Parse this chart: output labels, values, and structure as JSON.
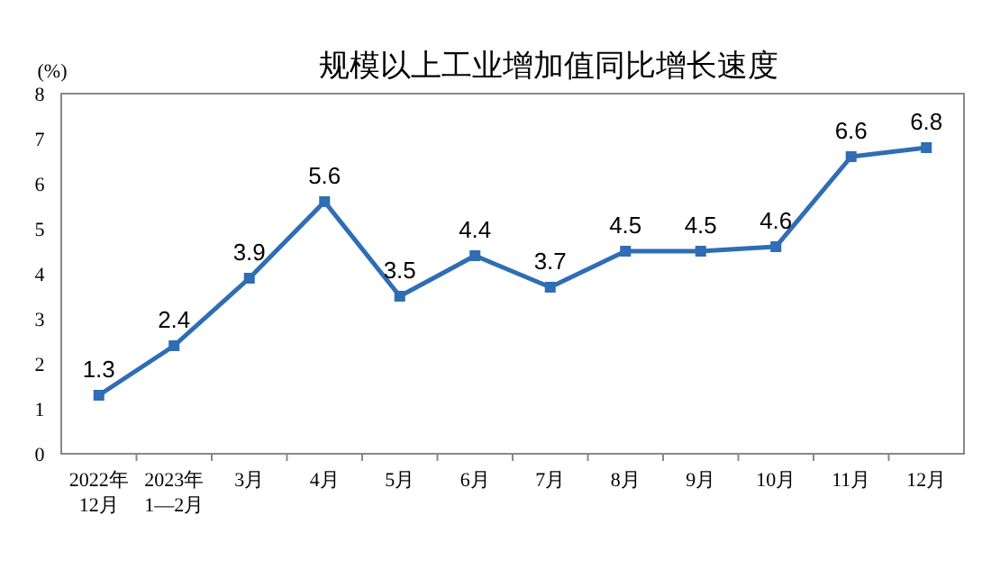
{
  "chart_data": {
    "type": "line",
    "title": "规模以上工业增加值同比增长速度",
    "ylabel": "(%)",
    "categories": [
      "2022年\n12月",
      "2023年\n1—2月",
      "3月",
      "4月",
      "5月",
      "6月",
      "7月",
      "8月",
      "9月",
      "10月",
      "11月",
      "12月"
    ],
    "series": [
      {
        "color": "#2f6db5",
        "values": [
          1.3,
          2.4,
          3.9,
          5.6,
          3.5,
          4.4,
          3.7,
          4.5,
          4.5,
          4.6,
          6.6,
          6.8
        ]
      }
    ],
    "ylim": [
      0,
      8
    ],
    "yticks": [
      0,
      1,
      2,
      3,
      4,
      5,
      6,
      7,
      8
    ],
    "data_labels": true,
    "marker": "square",
    "line_style": "solid",
    "grid": false
  }
}
